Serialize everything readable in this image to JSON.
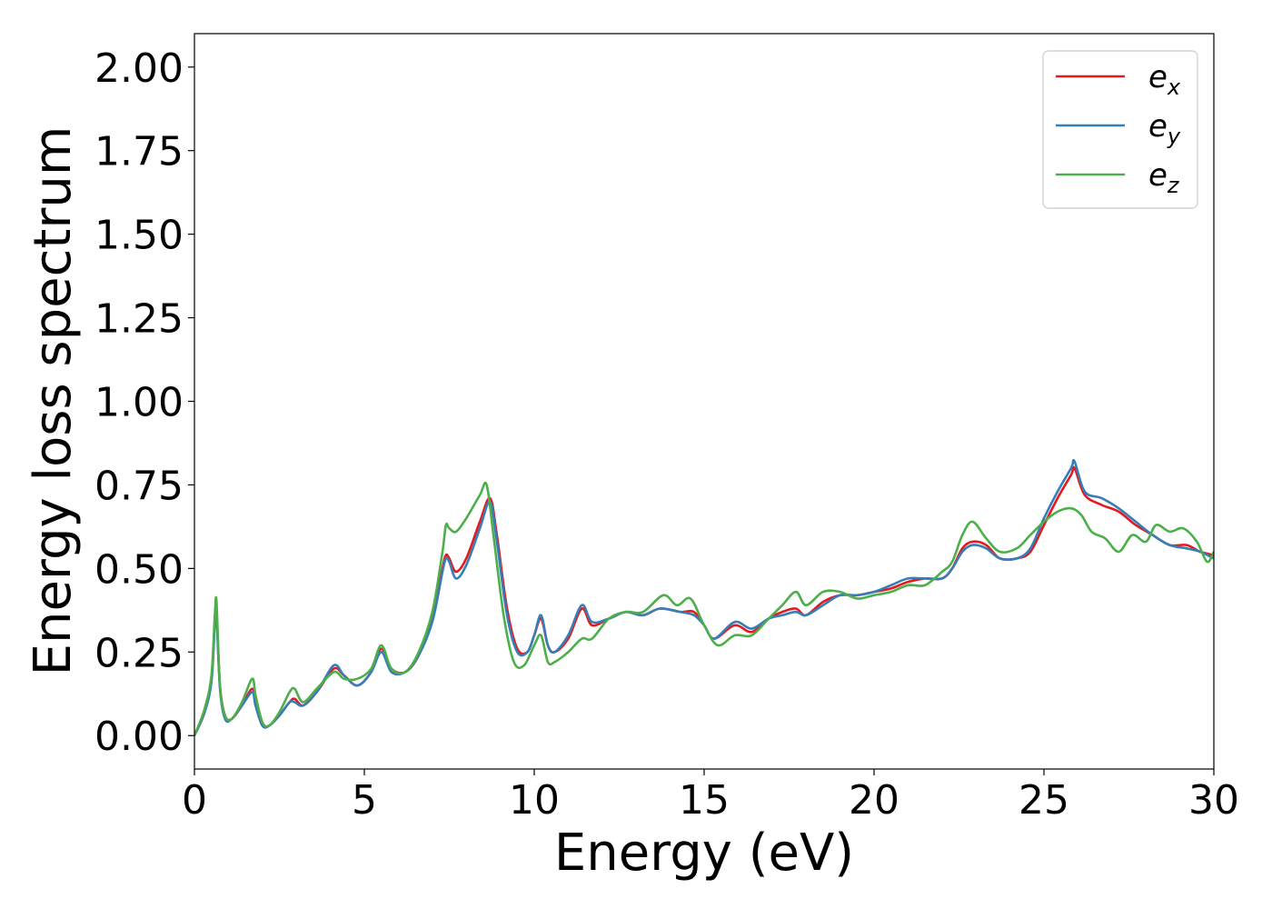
{
  "chart_data": {
    "type": "line",
    "xlabel": "Energy (eV)",
    "ylabel": "Energy loss spectrum",
    "xlim": [
      0,
      30
    ],
    "ylim": [
      -0.1,
      2.1
    ],
    "xticks": [
      0,
      5,
      10,
      15,
      20,
      25,
      30
    ],
    "yticks": [
      "0.00",
      "0.25",
      "0.50",
      "0.75",
      "1.00",
      "1.25",
      "1.50",
      "1.75",
      "2.00"
    ],
    "grid": false,
    "legend": "top-right",
    "series": [
      {
        "name": "e",
        "subscript": "x",
        "color": "#e41a1c",
        "x": [
          0.0,
          0.3,
          0.5,
          0.6,
          0.65,
          0.75,
          0.9,
          1.1,
          1.4,
          1.7,
          1.8,
          2.0,
          2.2,
          2.5,
          2.8,
          2.95,
          3.2,
          3.6,
          4.1,
          4.4,
          4.8,
          5.2,
          5.5,
          5.8,
          6.2,
          6.6,
          7.0,
          7.3,
          7.4,
          7.5,
          7.7,
          8.0,
          8.4,
          8.7,
          8.9,
          9.2,
          9.5,
          9.8,
          10.0,
          10.2,
          10.4,
          10.6,
          11.0,
          11.4,
          11.7,
          12.2,
          12.7,
          13.2,
          13.7,
          14.3,
          14.7,
          15.0,
          15.3,
          15.9,
          16.4,
          16.9,
          17.3,
          17.7,
          18.0,
          18.5,
          19.0,
          19.5,
          20.0,
          20.5,
          21.0,
          21.5,
          22.0,
          22.3,
          22.6,
          22.9,
          23.3,
          23.7,
          24.2,
          24.6,
          25.0,
          25.4,
          25.8,
          25.9,
          26.2,
          26.7,
          27.2,
          27.7,
          28.2,
          28.7,
          29.2,
          29.6,
          30.0
        ],
        "y": [
          0.0,
          0.07,
          0.17,
          0.34,
          0.37,
          0.15,
          0.06,
          0.05,
          0.09,
          0.14,
          0.09,
          0.03,
          0.03,
          0.06,
          0.1,
          0.11,
          0.09,
          0.13,
          0.2,
          0.18,
          0.15,
          0.19,
          0.26,
          0.2,
          0.19,
          0.24,
          0.35,
          0.5,
          0.54,
          0.53,
          0.49,
          0.53,
          0.64,
          0.71,
          0.6,
          0.38,
          0.26,
          0.25,
          0.3,
          0.35,
          0.27,
          0.25,
          0.29,
          0.38,
          0.33,
          0.35,
          0.37,
          0.36,
          0.38,
          0.37,
          0.37,
          0.33,
          0.29,
          0.33,
          0.31,
          0.35,
          0.37,
          0.38,
          0.36,
          0.4,
          0.42,
          0.42,
          0.43,
          0.44,
          0.46,
          0.47,
          0.47,
          0.5,
          0.56,
          0.58,
          0.57,
          0.53,
          0.53,
          0.55,
          0.63,
          0.71,
          0.78,
          0.8,
          0.72,
          0.69,
          0.67,
          0.63,
          0.6,
          0.57,
          0.57,
          0.55,
          0.54
        ]
      },
      {
        "name": "e",
        "subscript": "y",
        "color": "#377eb8",
        "x": [
          0.0,
          0.3,
          0.5,
          0.6,
          0.65,
          0.75,
          0.9,
          1.1,
          1.4,
          1.7,
          1.8,
          2.0,
          2.2,
          2.5,
          2.8,
          2.95,
          3.2,
          3.6,
          4.1,
          4.4,
          4.8,
          5.2,
          5.5,
          5.8,
          6.2,
          6.6,
          7.0,
          7.3,
          7.4,
          7.5,
          7.7,
          8.0,
          8.4,
          8.7,
          8.9,
          9.2,
          9.5,
          9.8,
          10.0,
          10.2,
          10.4,
          10.6,
          11.0,
          11.4,
          11.7,
          12.2,
          12.7,
          13.2,
          13.7,
          14.3,
          14.7,
          15.0,
          15.3,
          15.9,
          16.4,
          16.9,
          17.3,
          17.7,
          18.0,
          18.5,
          19.0,
          19.5,
          20.0,
          20.5,
          21.0,
          21.5,
          22.0,
          22.3,
          22.6,
          22.9,
          23.3,
          23.7,
          24.2,
          24.6,
          25.0,
          25.4,
          25.8,
          25.9,
          26.2,
          26.7,
          27.2,
          27.7,
          28.2,
          28.7,
          29.2,
          29.6,
          30.0
        ],
        "y": [
          0.0,
          0.07,
          0.16,
          0.33,
          0.36,
          0.14,
          0.05,
          0.05,
          0.09,
          0.13,
          0.09,
          0.03,
          0.03,
          0.06,
          0.1,
          0.1,
          0.09,
          0.13,
          0.21,
          0.18,
          0.15,
          0.19,
          0.25,
          0.19,
          0.19,
          0.24,
          0.34,
          0.49,
          0.53,
          0.52,
          0.47,
          0.51,
          0.62,
          0.7,
          0.58,
          0.36,
          0.25,
          0.25,
          0.3,
          0.36,
          0.27,
          0.25,
          0.3,
          0.39,
          0.34,
          0.35,
          0.37,
          0.36,
          0.38,
          0.37,
          0.36,
          0.33,
          0.29,
          0.34,
          0.32,
          0.35,
          0.36,
          0.37,
          0.36,
          0.39,
          0.42,
          0.42,
          0.43,
          0.45,
          0.47,
          0.47,
          0.47,
          0.5,
          0.55,
          0.57,
          0.56,
          0.53,
          0.53,
          0.56,
          0.65,
          0.73,
          0.8,
          0.82,
          0.73,
          0.71,
          0.68,
          0.64,
          0.6,
          0.57,
          0.56,
          0.55,
          0.53
        ]
      },
      {
        "name": "e",
        "subscript": "z",
        "color": "#4daf4a",
        "x": [
          0.0,
          0.3,
          0.5,
          0.6,
          0.65,
          0.75,
          0.9,
          1.1,
          1.4,
          1.7,
          1.8,
          2.0,
          2.2,
          2.5,
          2.8,
          2.95,
          3.2,
          3.6,
          4.1,
          4.4,
          4.8,
          5.2,
          5.5,
          5.8,
          6.2,
          6.6,
          7.0,
          7.3,
          7.4,
          7.5,
          7.7,
          8.0,
          8.4,
          8.6,
          8.8,
          9.1,
          9.4,
          9.7,
          10.0,
          10.2,
          10.4,
          10.6,
          11.0,
          11.4,
          11.7,
          12.2,
          12.7,
          13.2,
          13.8,
          14.2,
          14.6,
          15.0,
          15.4,
          15.9,
          16.4,
          16.9,
          17.3,
          17.7,
          18.0,
          18.5,
          19.0,
          19.5,
          20.0,
          20.5,
          21.0,
          21.5,
          22.0,
          22.3,
          22.6,
          22.9,
          23.3,
          23.7,
          24.2,
          24.6,
          25.0,
          25.4,
          25.8,
          26.1,
          26.4,
          26.8,
          27.2,
          27.6,
          28.0,
          28.3,
          28.7,
          29.1,
          29.5,
          29.8,
          30.0
        ],
        "y": [
          0.0,
          0.08,
          0.18,
          0.36,
          0.4,
          0.15,
          0.06,
          0.05,
          0.1,
          0.17,
          0.12,
          0.04,
          0.03,
          0.07,
          0.13,
          0.14,
          0.1,
          0.14,
          0.19,
          0.17,
          0.17,
          0.2,
          0.27,
          0.2,
          0.19,
          0.25,
          0.37,
          0.55,
          0.63,
          0.62,
          0.61,
          0.65,
          0.72,
          0.75,
          0.6,
          0.36,
          0.22,
          0.21,
          0.27,
          0.3,
          0.22,
          0.22,
          0.25,
          0.29,
          0.29,
          0.35,
          0.37,
          0.37,
          0.42,
          0.39,
          0.41,
          0.33,
          0.27,
          0.3,
          0.3,
          0.35,
          0.39,
          0.43,
          0.39,
          0.43,
          0.43,
          0.41,
          0.42,
          0.43,
          0.45,
          0.45,
          0.49,
          0.52,
          0.6,
          0.64,
          0.59,
          0.55,
          0.56,
          0.6,
          0.64,
          0.67,
          0.68,
          0.66,
          0.61,
          0.59,
          0.55,
          0.6,
          0.58,
          0.63,
          0.61,
          0.62,
          0.58,
          0.52,
          0.55
        ]
      }
    ]
  }
}
